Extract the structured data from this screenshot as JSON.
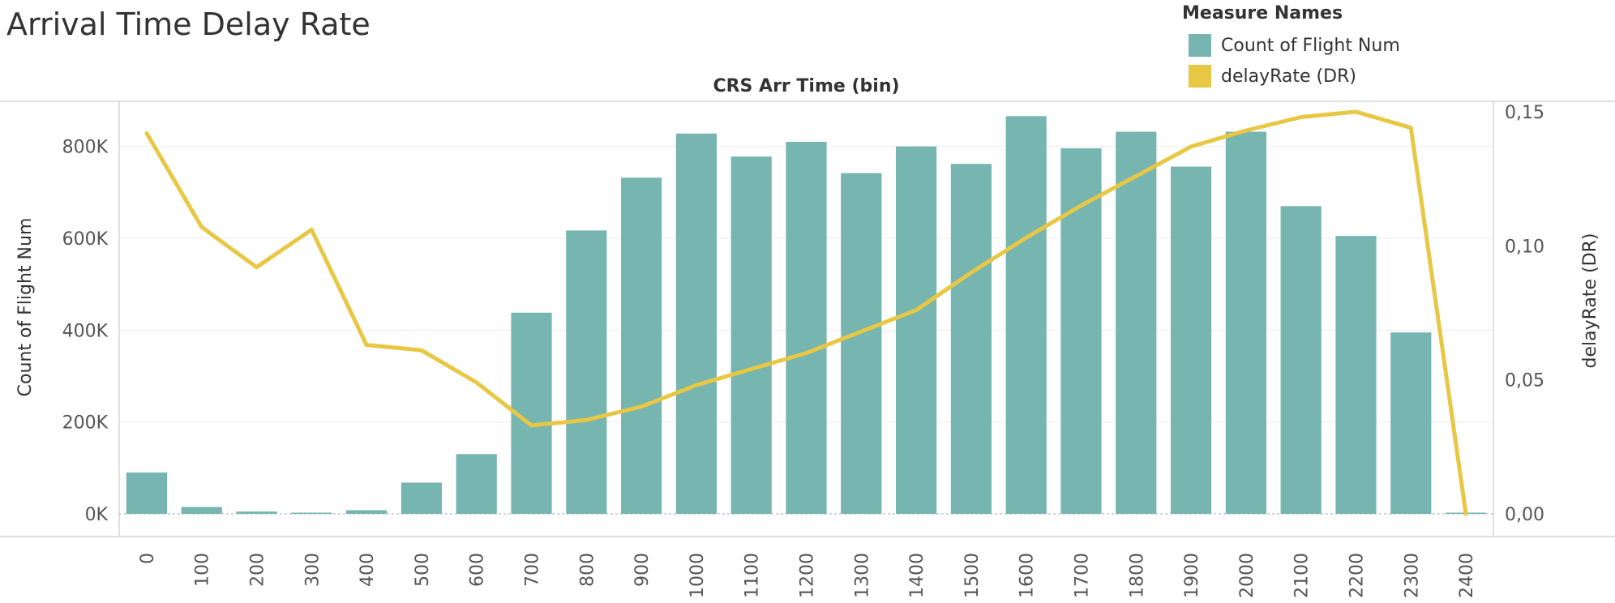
{
  "title": "Arrival Time Delay Rate",
  "legend": {
    "title": "Measure Names",
    "items": [
      {
        "label": "Count of Flight Num",
        "color": "#76b5b0"
      },
      {
        "label": "delayRate (DR)",
        "color": "#e8c744"
      }
    ]
  },
  "chart_data": {
    "type": "bar",
    "title": "Arrival Time Delay Rate",
    "header": "CRS Arr Time (bin)",
    "categories": [
      "0",
      "100",
      "200",
      "300",
      "400",
      "500",
      "600",
      "700",
      "800",
      "900",
      "1000",
      "1100",
      "1200",
      "1300",
      "1400",
      "1500",
      "1600",
      "1700",
      "1800",
      "1900",
      "2000",
      "2100",
      "2200",
      "2300",
      "2400"
    ],
    "y_left_label": "Count of Flight Num",
    "y_left_ticks": [
      "0K",
      "200K",
      "400K",
      "600K",
      "800K"
    ],
    "y_left_tick_values": [
      0,
      200000,
      400000,
      600000,
      800000
    ],
    "y_left_range": [
      0,
      900000
    ],
    "y_right_label": "delayRate (DR)",
    "y_right_ticks": [
      "0,00",
      "0,05",
      "0,10",
      "0,15"
    ],
    "y_right_tick_values": [
      0,
      0.05,
      0.1,
      0.15
    ],
    "y_right_range": [
      0,
      0.1542
    ],
    "series": [
      {
        "name": "Count of Flight Num",
        "type": "bar",
        "axis": "left",
        "color": "#76b5b0",
        "values": [
          90000,
          15000,
          5000,
          2000,
          8000,
          68000,
          130000,
          438000,
          617000,
          732000,
          828000,
          778000,
          810000,
          742000,
          800000,
          762000,
          866000,
          796000,
          832000,
          756000,
          832000,
          670000,
          605000,
          395000,
          2000
        ]
      },
      {
        "name": "delayRate (DR)",
        "type": "line",
        "axis": "right",
        "color": "#e8c744",
        "values": [
          0.142,
          0.107,
          0.092,
          0.106,
          0.063,
          0.061,
          0.049,
          0.033,
          0.035,
          0.04,
          0.048,
          0.054,
          0.06,
          0.068,
          0.076,
          0.09,
          0.103,
          0.115,
          0.126,
          0.137,
          0.143,
          0.148,
          0.15,
          0.144,
          0.0
        ]
      }
    ],
    "grid": true
  }
}
